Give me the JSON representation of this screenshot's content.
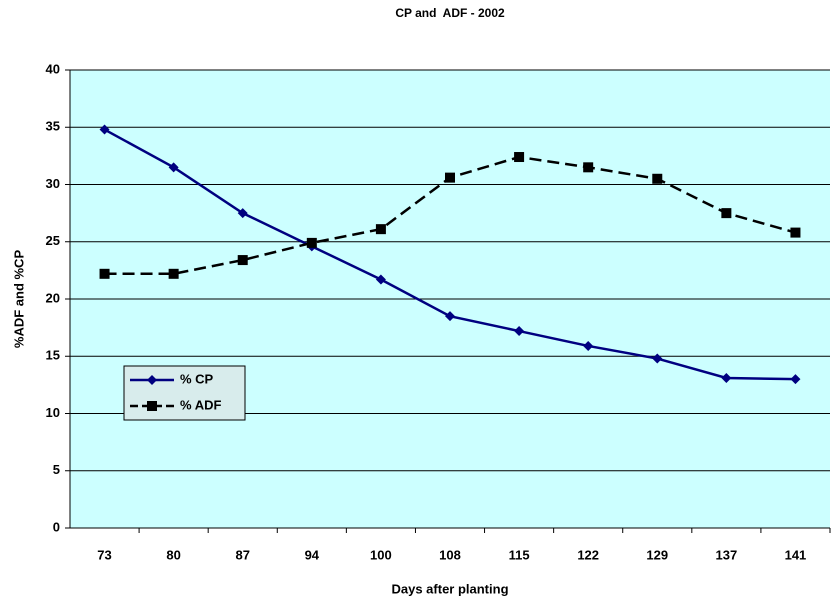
{
  "chart_data": {
    "type": "line",
    "title": "CP and  ADF - 2002",
    "x_label": "Days after planting",
    "y_label": "%ADF and %CP",
    "categories": [
      "73",
      "80",
      "87",
      "94",
      "100",
      "108",
      "115",
      "122",
      "129",
      "137",
      "141"
    ],
    "series": [
      {
        "name": "% CP",
        "color": "#000080",
        "marker": "diamond",
        "dashed": false,
        "values": [
          34.8,
          31.5,
          27.5,
          24.6,
          21.7,
          18.5,
          17.2,
          15.9,
          14.8,
          13.1,
          13.0
        ]
      },
      {
        "name": "% ADF",
        "color": "#000000",
        "marker": "square",
        "dashed": true,
        "values": [
          22.2,
          22.2,
          23.4,
          24.9,
          26.1,
          30.6,
          32.4,
          31.5,
          30.5,
          27.5,
          25.8
        ]
      }
    ],
    "ylim": [
      0,
      40
    ],
    "yticks": [
      0,
      5,
      10,
      15,
      20,
      25,
      30,
      35,
      40
    ],
    "grid": true,
    "background": "#ccffff",
    "legend": "lower-left"
  }
}
